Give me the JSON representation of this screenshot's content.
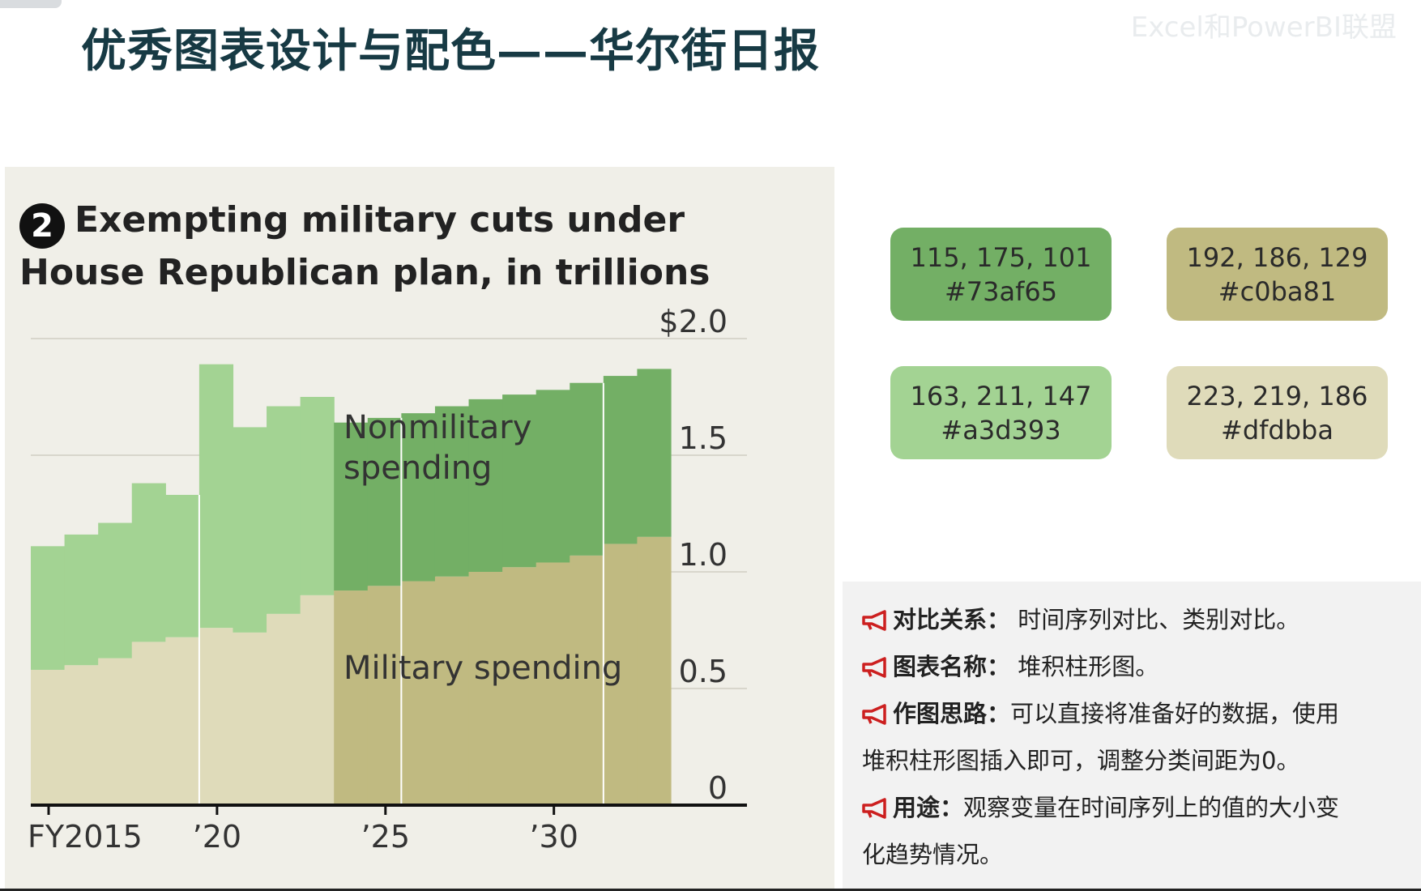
{
  "slide": {
    "title": "优秀图表设计与配色——华尔街日报",
    "watermark": "Excel和PowerBI联盟"
  },
  "chart_header": {
    "number": "2",
    "title": "Exempting military cuts under House Republican plan, in trillions"
  },
  "chart_data": {
    "type": "bar",
    "stacked": true,
    "categories": [
      "2015",
      "2016",
      "2017",
      "2018",
      "2019",
      "2020",
      "2021",
      "2022",
      "2023",
      "2024",
      "2025",
      "2026",
      "2027",
      "2028",
      "2029",
      "2030",
      "2031",
      "2032",
      "2033"
    ],
    "series": [
      {
        "name": "Military spending",
        "values": [
          0.58,
          0.6,
          0.63,
          0.7,
          0.72,
          0.76,
          0.74,
          0.82,
          0.9,
          0.92,
          0.94,
          0.96,
          0.98,
          1.0,
          1.02,
          1.04,
          1.07,
          1.12,
          1.15
        ],
        "color_actual": "#dfdbba",
        "color_projected": "#c0ba81"
      },
      {
        "name": "Nonmilitary spending",
        "values": [
          0.53,
          0.56,
          0.58,
          0.68,
          0.61,
          1.13,
          0.88,
          0.89,
          0.85,
          0.72,
          0.72,
          0.72,
          0.73,
          0.74,
          0.74,
          0.74,
          0.74,
          0.72,
          0.72
        ],
        "color_actual": "#a3d393",
        "color_projected": "#73af65"
      }
    ],
    "projection_starts_at": "2024",
    "x_tick_labels": [
      "FY2015",
      "’20",
      "’25",
      "’30"
    ],
    "x_tick_categories": [
      "2015",
      "2020",
      "2025",
      "2030"
    ],
    "y_tick_labels": [
      "0",
      "0.5",
      "1.0",
      "1.5",
      "$2.0"
    ],
    "y_ticks": [
      0,
      0.5,
      1.0,
      1.5,
      2.0
    ],
    "ylim": [
      0,
      2.0
    ],
    "annotations": {
      "nonmilitary_line1": "Nonmilitary",
      "nonmilitary_line2": "spending",
      "military": "Military spending"
    },
    "grid": "horizontal",
    "colors": {
      "axis": "#111111",
      "grid": "#d8d6cc",
      "divider": "#ffffff",
      "text": "#333333"
    }
  },
  "swatches": [
    {
      "rgb": "115, 175, 101",
      "hex": "#73af65",
      "color": "#73af65"
    },
    {
      "rgb": "192, 186, 129",
      "hex": "#c0ba81",
      "color": "#c0ba81"
    },
    {
      "rgb": "163, 211, 147",
      "hex": "#a3d393",
      "color": "#a3d393"
    },
    {
      "rgb": "223, 219, 186",
      "hex": "#dfdbba",
      "color": "#dfdbba"
    }
  ],
  "notes": [
    {
      "key": "对比关系：",
      "text": " 时间序列对比、类别对比。"
    },
    {
      "key": "图表名称：",
      "text": " 堆积柱形图。"
    },
    {
      "key": "作图思路：",
      "text": "可以直接将准备好的数据，使用"
    },
    {
      "key": "",
      "text": "堆积柱形图插入即可，调整分类间距为0。"
    },
    {
      "key": "用途：",
      "text": "观察变量在时间序列上的值的大小变"
    },
    {
      "key": "",
      "text": "化趋势情况。"
    }
  ],
  "icon_names": {
    "note": "megaphone-icon"
  }
}
